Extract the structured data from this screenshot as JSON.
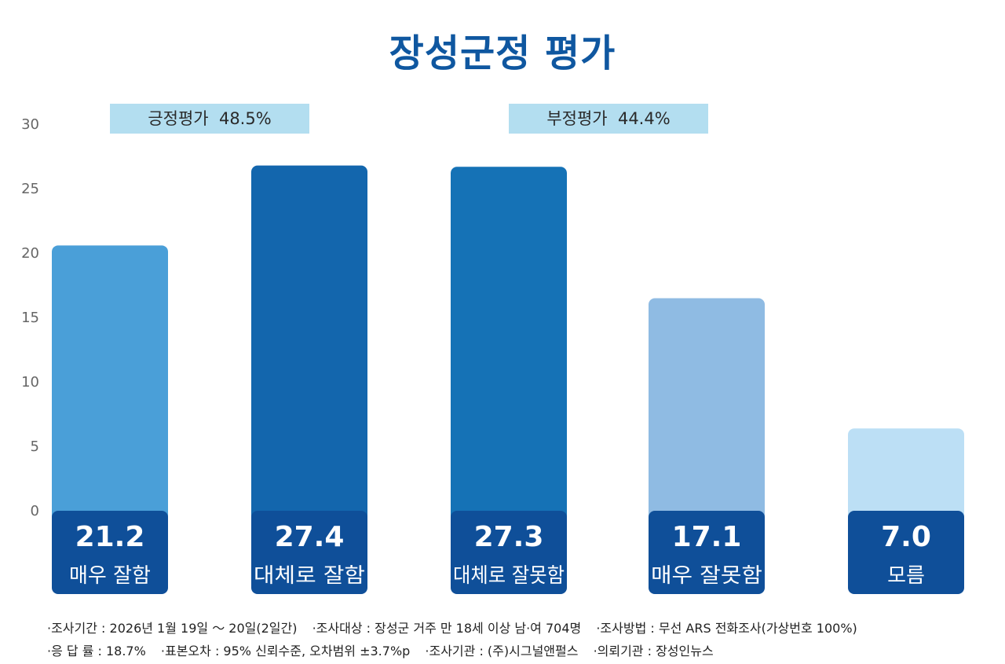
{
  "chart_data": {
    "type": "bar",
    "title": "장성군정 평가",
    "categories": [
      "매우 잘함",
      "대체로 잘함",
      "대체로 잘못함",
      "매우 잘못함",
      "모름"
    ],
    "values": [
      21.2,
      27.4,
      27.3,
      17.1,
      7.0
    ],
    "value_labels": [
      "21.2",
      "27.4",
      "27.3",
      "17.1",
      "7.0"
    ],
    "bar_colors": [
      "#4a9fd8",
      "#1366ad",
      "#1572b6",
      "#8fbbe3",
      "#bcdff5"
    ],
    "label_box_color": "#0f4f99",
    "ylim": [
      0,
      30
    ],
    "yticks": [
      "0",
      "5",
      "10",
      "15",
      "20",
      "25",
      "30"
    ],
    "grid": false,
    "legend": "none",
    "groups": [
      {
        "label": "긍정평가  48.5%"
      },
      {
        "label": "부정평가  44.4%"
      }
    ]
  },
  "footnotes": {
    "line1": [
      "·조사기간 : 2026년 1월 19일 ～ 20일(2일간)",
      "·조사대상 : 장성군 거주 만 18세 이상 남·여 704명",
      "·조사방법 : 무선 ARS 전화조사(가상번호 100%)"
    ],
    "line2": [
      "·응 답 률 : 18.7%",
      "·표본오차 : 95% 신뢰수준, 오차범위 ±3.7%p",
      "·조사기관 : (주)시그널앤펄스",
      "·의뢰기관 : 장성인뉴스"
    ]
  }
}
